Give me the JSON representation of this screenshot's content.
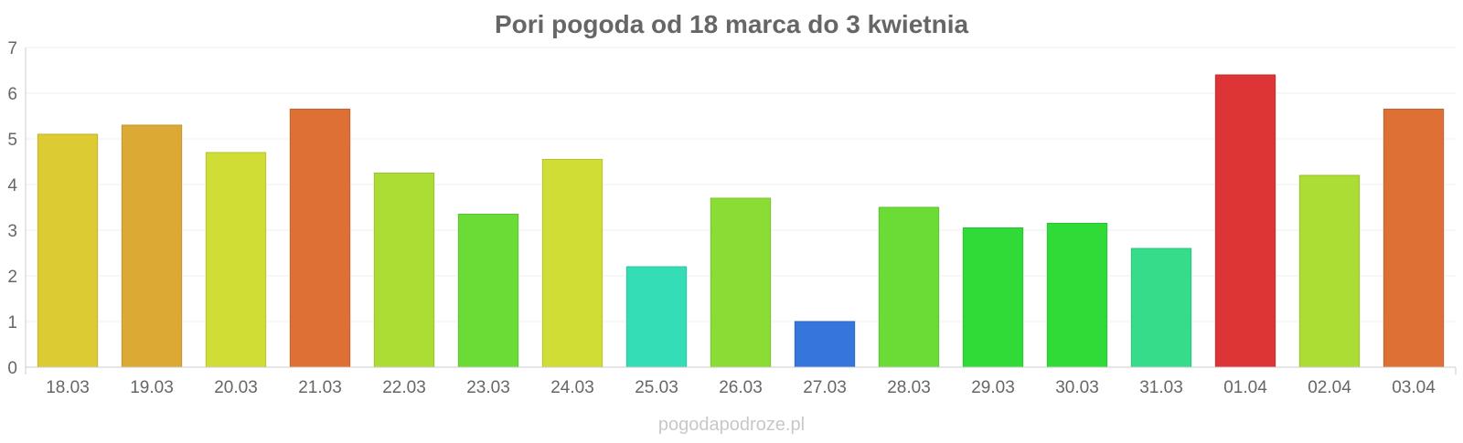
{
  "chart_data": {
    "type": "bar",
    "title": "Pori pogoda od 18 marca do 3 kwietnia",
    "xlabel": "",
    "ylabel": "",
    "ylim": [
      0,
      7
    ],
    "yticks": [
      "0",
      "1",
      "2",
      "3",
      "4",
      "5",
      "6",
      "7"
    ],
    "grid": true,
    "legend": "none",
    "categories": [
      "18.03",
      "19.03",
      "20.03",
      "21.03",
      "22.03",
      "23.03",
      "24.03",
      "25.03",
      "26.03",
      "27.03",
      "28.03",
      "29.03",
      "30.03",
      "31.03",
      "01.04",
      "02.04",
      "03.04"
    ],
    "values": [
      5.1,
      5.3,
      4.7,
      5.65,
      4.25,
      3.35,
      4.55,
      2.2,
      3.7,
      1.0,
      3.5,
      3.05,
      3.15,
      2.6,
      6.4,
      4.2,
      5.65
    ],
    "colors": [
      "#dccb33",
      "#dda935",
      "#cfdd35",
      "#de7035",
      "#acdd35",
      "#6adc35",
      "#cfdd35",
      "#35ddb6",
      "#8bdd35",
      "#3476dc",
      "#6adc35",
      "#30db37",
      "#30db37",
      "#35dc8a",
      "#dd3535",
      "#acdd35",
      "#de7035"
    ]
  },
  "watermark": "pogodapodroze.pl"
}
